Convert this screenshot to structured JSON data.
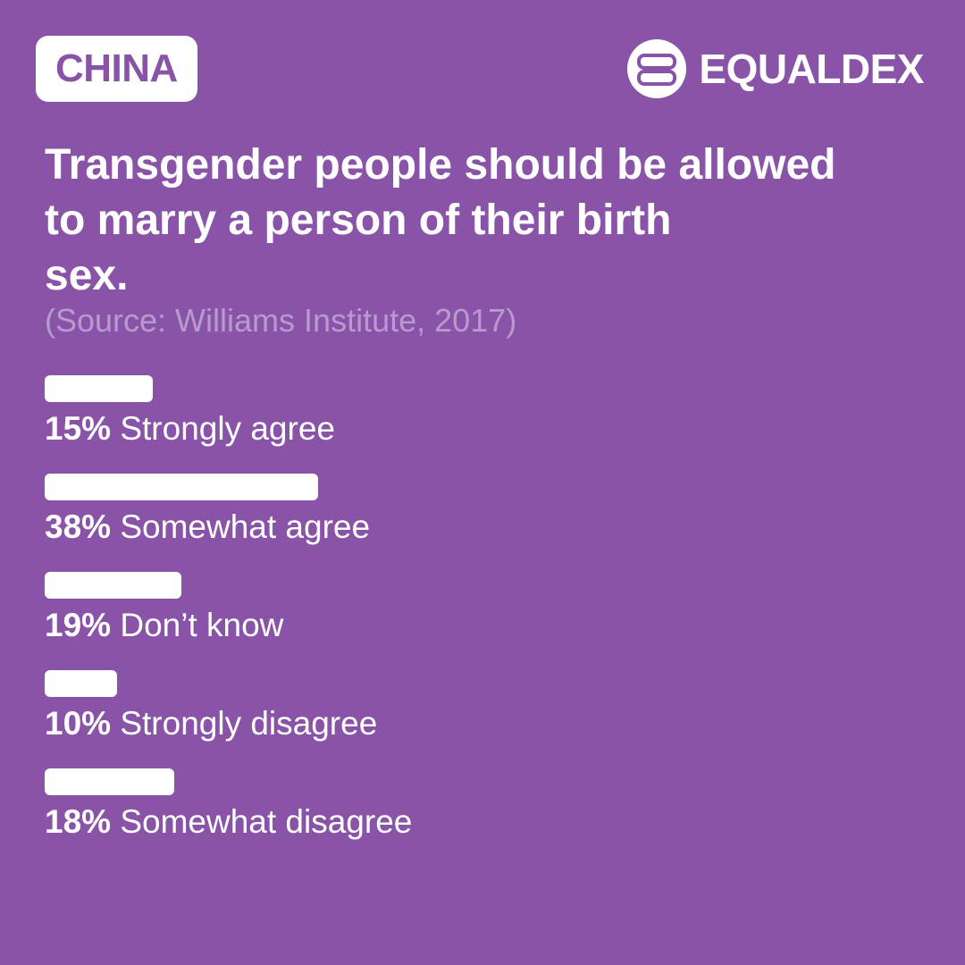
{
  "badge": {
    "country": "CHINA"
  },
  "brand": {
    "logo_icon": "equaldex-logo-icon",
    "name": "EQUALDEX"
  },
  "colors": {
    "background": "#8954a8",
    "foreground": "#ffffff",
    "source_text": "#b99ad0"
  },
  "title_lines": [
    "Transgender people should be allowed",
    "to marry a person of their birth",
    "sex."
  ],
  "source": "(Source: Williams Institute, 2017)",
  "chart_data": {
    "type": "bar",
    "orientation": "horizontal",
    "title": "Transgender people should be allowed to marry a person of their birth sex.",
    "categories": [
      "Strongly agree",
      "Somewhat agree",
      "Don’t know",
      "Strongly disagree",
      "Somewhat disagree"
    ],
    "values": [
      15,
      38,
      19,
      10,
      18
    ],
    "value_labels": [
      "15%",
      "38%",
      "19%",
      "10%",
      "18%"
    ],
    "unit": "%",
    "xlim": [
      0,
      100
    ],
    "grid": false,
    "legend": "none"
  }
}
